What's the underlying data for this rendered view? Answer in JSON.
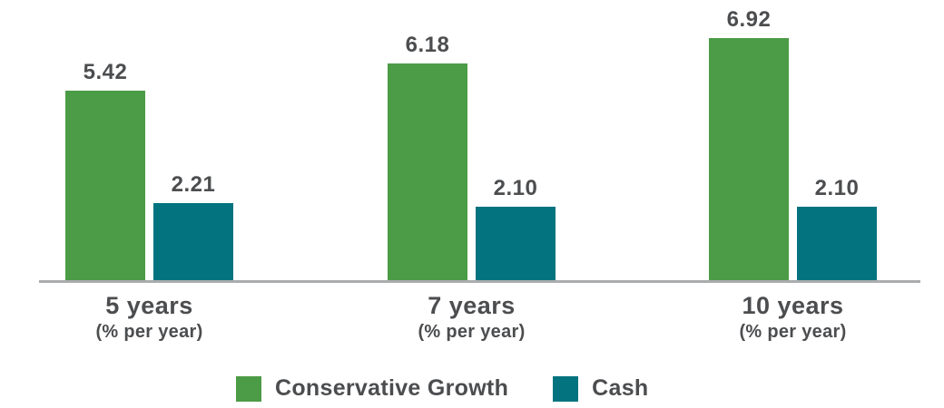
{
  "chart_data": {
    "type": "bar",
    "categories": [
      "5 years",
      "7 years",
      "10 years"
    ],
    "category_sublabel": "(% per year)",
    "series": [
      {
        "name": "Conservative Growth",
        "color": "#4c9b46",
        "values": [
          5.42,
          6.18,
          6.92
        ]
      },
      {
        "name": "Cash",
        "color": "#02737f",
        "values": [
          2.21,
          2.1,
          2.1
        ]
      }
    ],
    "value_label_decimals": 2,
    "ylim": [
      0,
      7.2
    ],
    "grid": false,
    "legend_position": "bottom",
    "axis_line_color": "#aaacae",
    "label_color": "#4c4d4f",
    "title": "",
    "xlabel": "",
    "ylabel": ""
  }
}
